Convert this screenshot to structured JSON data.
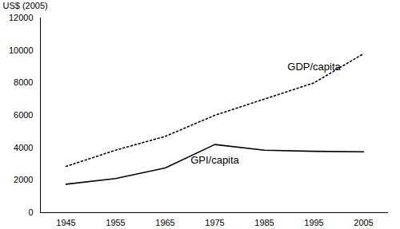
{
  "chart_data": {
    "type": "line",
    "y_label": "US$ (2005)",
    "categories": [
      "1945",
      "1955",
      "1965",
      "1975",
      "1985",
      "1995",
      "2005"
    ],
    "series": [
      {
        "name": "GDP/capita",
        "color": "#000000",
        "line_style": "dotted",
        "values": [
          2850,
          3850,
          4700,
          6000,
          7000,
          8000,
          9800
        ]
      },
      {
        "name": "GPI/capita",
        "color": "#000000",
        "line_style": "solid",
        "values": [
          1750,
          2100,
          2750,
          4200,
          3850,
          3780,
          3750
        ]
      }
    ],
    "ylim": [
      0,
      12000
    ],
    "yticks": [
      0,
      2000,
      4000,
      6000,
      8000,
      10000,
      12000
    ],
    "grid": false
  }
}
